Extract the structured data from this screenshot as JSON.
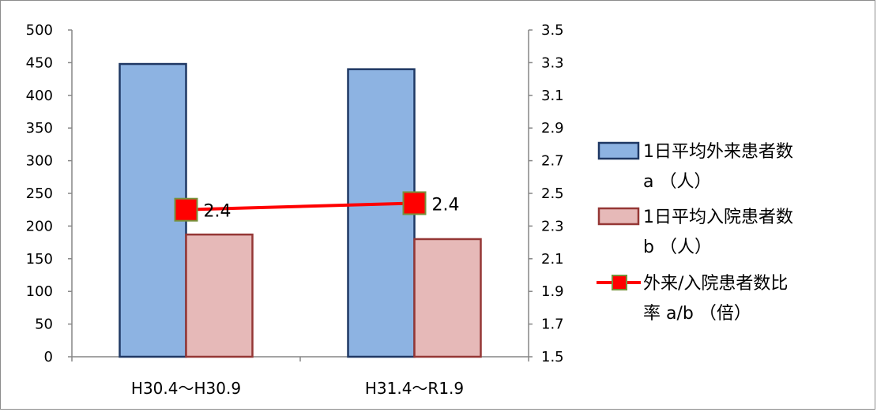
{
  "chart_data": {
    "type": "bar",
    "categories": [
      "H30.4～H30.9",
      "H31.4～R1.9"
    ],
    "series": [
      {
        "name": "1日平均外来患者数 a （人）",
        "type": "bar",
        "axis": "left",
        "values": [
          448,
          440
        ],
        "color": "#8db3e2",
        "stroke": "#1f3864"
      },
      {
        "name": "1日平均入院患者数 b （人）",
        "type": "bar",
        "axis": "left",
        "values": [
          187,
          180
        ],
        "color": "#e6b9b8",
        "stroke": "#953735"
      },
      {
        "name": "外来/入院患者数比率 a/b （倍）",
        "type": "line",
        "axis": "right",
        "values": [
          2.4,
          2.44
        ],
        "labels": [
          "2.4",
          "2.4"
        ],
        "color": "#ff0000",
        "marker_color": "#ff0000",
        "marker_stroke": "#76923c"
      }
    ],
    "left_axis": {
      "ylim": [
        0,
        500
      ],
      "ticks": [
        "0",
        "50",
        "100",
        "150",
        "200",
        "250",
        "300",
        "350",
        "400",
        "450",
        "500"
      ]
    },
    "right_axis": {
      "ylim": [
        1.5,
        3.5
      ],
      "ticks": [
        "1.5",
        "1.7",
        "1.9",
        "2.1",
        "2.3",
        "2.5",
        "2.7",
        "2.9",
        "3.1",
        "3.3",
        "3.5"
      ]
    },
    "legend": {
      "position": "right",
      "entries": [
        {
          "lines": [
            "1日平均外来患者数",
            "a （人）"
          ]
        },
        {
          "lines": [
            "1日平均入院患者数",
            "b （人）"
          ]
        },
        {
          "lines": [
            "外来/入院患者数比",
            "率  a/b （倍）"
          ]
        }
      ]
    },
    "grid": false
  }
}
